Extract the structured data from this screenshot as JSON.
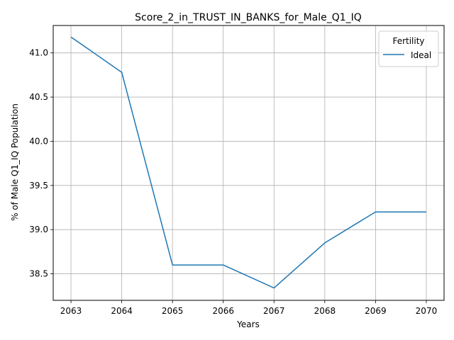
{
  "chart_data": {
    "type": "line",
    "title": "Score_2_in_TRUST_IN_BANKS_for_Male_Q1_IQ",
    "xlabel": "Years",
    "ylabel": "% of Male Q1_IQ Population",
    "x": [
      2063,
      2064,
      2065,
      2066,
      2067,
      2068,
      2069,
      2070
    ],
    "xticks": [
      "2063",
      "2064",
      "2065",
      "2066",
      "2067",
      "2068",
      "2069",
      "2070"
    ],
    "yticks": [
      "38.5",
      "39.0",
      "39.5",
      "40.0",
      "40.5",
      "41.0"
    ],
    "ytick_values": [
      38.5,
      39.0,
      39.5,
      40.0,
      40.5,
      41.0
    ],
    "xlim": [
      2062.65,
      2070.35
    ],
    "ylim": [
      38.2,
      41.31
    ],
    "grid": true,
    "legend": {
      "title": "Fertility",
      "placement": "top-right"
    },
    "series": [
      {
        "name": "Ideal",
        "color": "#1f77b4",
        "values": [
          41.18,
          40.78,
          38.6,
          38.6,
          38.34,
          38.85,
          39.2,
          39.2
        ]
      }
    ]
  }
}
